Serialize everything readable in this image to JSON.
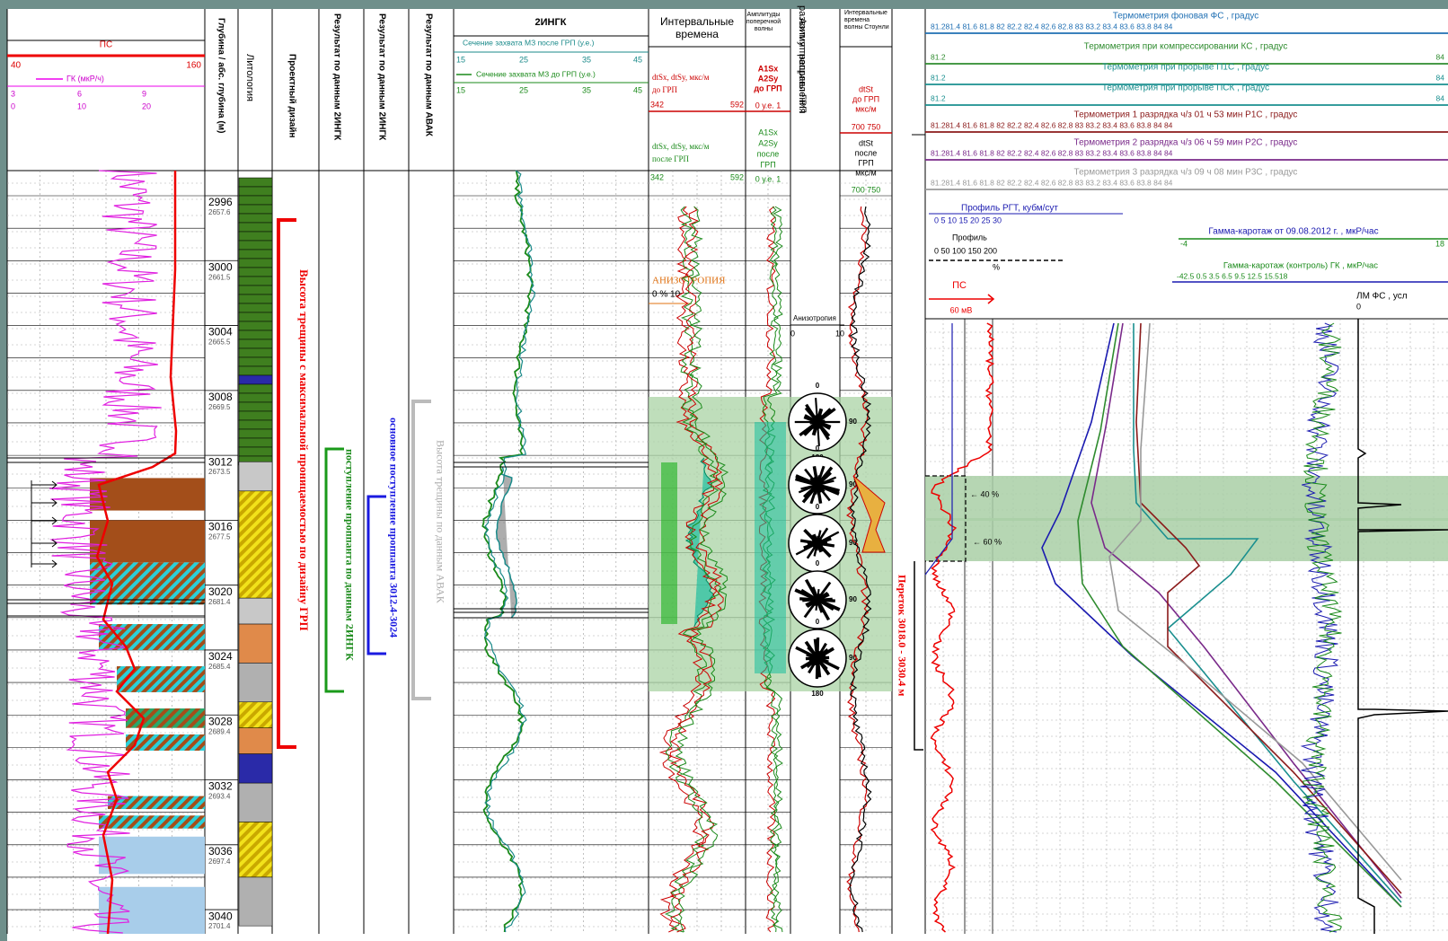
{
  "left": {
    "ps": "ПС",
    "ps_scale": [
      "40",
      "160"
    ],
    "gk": "ГК (мкР/ч)",
    "gk_scale_1": [
      "3",
      "6",
      "9"
    ],
    "gk_scale_2": [
      "0",
      "10",
      "20"
    ]
  },
  "columns": {
    "depth": "Глубина / абс. глубина (м)",
    "lithology": "Литология",
    "design": "Проектный дизайн",
    "ingk_1": "Результат по данным 2ИНГК",
    "ingk_2": "Результат по данным 2ИНГК",
    "avak": "Результат по данным АВАК"
  },
  "ingk": {
    "title": "2ИНГК",
    "after": "Сечение захвата МЗ после ГРП (у.е.)",
    "after_scale": [
      "15",
      "25",
      "35",
      "45"
    ],
    "before": "Сечение захвата МЗ до ГРП (у.е.)",
    "before_scale": [
      "15",
      "25",
      "35",
      "45"
    ]
  },
  "interval": {
    "title": [
      "Интервальные",
      "времена"
    ],
    "before": [
      "dtSx, dtSy, мкс/м",
      "до ГРП"
    ],
    "before_scale": [
      "342",
      "592"
    ],
    "after": [
      "dtSx, dtSy, мкс/м",
      "после ГРП"
    ],
    "after_scale": [
      "342",
      "592"
    ],
    "anisotropy": "АНИЗОТРОПИЯ",
    "anisotropy_scale": "0 %  10"
  },
  "amplitude": {
    "title": [
      "Амплитуды",
      "поперечной",
      "волны"
    ],
    "before": [
      "A1Sx",
      "A2Sy",
      "до ГРП"
    ],
    "before_scale": "0  у.е.  1",
    "after": [
      "A1Sx",
      "A2Sy",
      "после",
      "ГРП"
    ],
    "after_scale": "0  у.е.  1"
  },
  "azimuth": {
    "title": [
      "Азимут направления",
      "развития трещины ГРП"
    ],
    "anisotropy": "Анизотропия",
    "scale": [
      "0",
      "10"
    ],
    "rose": [
      "0",
      "90",
      "180"
    ]
  },
  "stoneley": {
    "title": [
      "Интервальные",
      "времена",
      "волны Стоунли"
    ],
    "before": [
      "dtSt",
      "до ГРП",
      "мкс/м"
    ],
    "before_scale": "700  750",
    "after": [
      "dtSt",
      "после",
      "ГРП",
      "мкс/м"
    ],
    "after_scale": "700  750"
  },
  "depths": [
    {
      "md": 2996,
      "tvd": 2657.6
    },
    {
      "md": 3000,
      "tvd": 2661.5
    },
    {
      "md": 3004,
      "tvd": 2665.5
    },
    {
      "md": 3008,
      "tvd": 2669.5
    },
    {
      "md": 3012,
      "tvd": 2673.5
    },
    {
      "md": 3016,
      "tvd": 2677.5
    },
    {
      "md": 3020,
      "tvd": 2681.4
    },
    {
      "md": 3024,
      "tvd": 2685.4
    },
    {
      "md": 3028,
      "tvd": 2689.4
    },
    {
      "md": 3032,
      "tvd": 2693.4
    },
    {
      "md": 3036,
      "tvd": 2697.4
    },
    {
      "md": 3040,
      "tvd": 2701.4
    }
  ],
  "annotations": {
    "design_height": "Высота трещины с максимальной проницаемостью по дизайну ГРП",
    "proppant_ingk": "поступление проппанта по данным 2ИНГК",
    "proppant_main": "основное поступление проппанта 3012.4-3024",
    "avak_height": "Высота трещины по данным АВАК",
    "crossflow": "Переток 3018.0 - 3030.4 м",
    "band_40": "← 40 %",
    "band_60": "← 60 %"
  },
  "right": {
    "thermo": [
      {
        "title": "Термометрия фоновая ФС , градус",
        "scale": "81.281.4   81.6   81.8   82   82.2   82.4   82.6   82.8   83   83.2   83.4   83.6   83.8   84 84",
        "color": "#1f6fb3"
      },
      {
        "title": "Термометрия при компрессировании КС , градус",
        "scale": "81.2",
        "end": "84",
        "color": "#2e8b2e"
      },
      {
        "title": "Термометрия при прорыве П1С , градус",
        "scale": "81.2",
        "end": "84",
        "color": "#1a8f8f"
      },
      {
        "title": "Термометрия при прорыве ПСК , градус",
        "scale": "81.2",
        "end": "84",
        "color": "#1a8f8f"
      },
      {
        "title": "Термометрия 1 разрядка ч/з 01 ч 53 мин Р1С , градус",
        "scale": "81.281.4   81.6   81.8   82   82.2   82.4   82.6   82.8   83   83.2   83.4   83.6   83.8   84 84",
        "color": "#8b1a1a"
      },
      {
        "title": "Термометрия 2 разрядка ч/з 06 ч 59 мин Р2С , градус",
        "scale": "81.281.4   81.6   81.8   82   82.2   82.4   82.6   82.8   83   83.2   83.4   83.6   83.8   84 84",
        "color": "#7a2a8a"
      },
      {
        "title": "Термометрия 3 разрядка ч/з 09 ч 08 мин Р3С , градус",
        "scale": "81.281.4   81.6   81.8   82   82.2   82.4   82.6   82.8   83   83.2   83.4   83.6   83.8   84 84",
        "color": "#999999"
      }
    ],
    "rgt": "Профиль РГТ, кубм/сут",
    "rgt_scale": "0      5      10     15     20     25     30",
    "profile": "Профиль",
    "profile_scale": "0    50    100   150  200",
    "profile_unit": "%",
    "ps": "ПС",
    "ps_unit": "60 мВ",
    "gamma": "Гамма-каротаж от 09.08.2012 г. , мкР/час",
    "gamma_scale": [
      "-4",
      "18"
    ],
    "gamma_ctrl": "Гамма-каротаж (контроль) ГК , мкР/час",
    "gamma_ctrl_scale": "-42.5   0.5    3.5    6.5    9.5    12.5   15.518",
    "lm": "ЛМ ФС , усл",
    "lm_scale": "0"
  }
}
